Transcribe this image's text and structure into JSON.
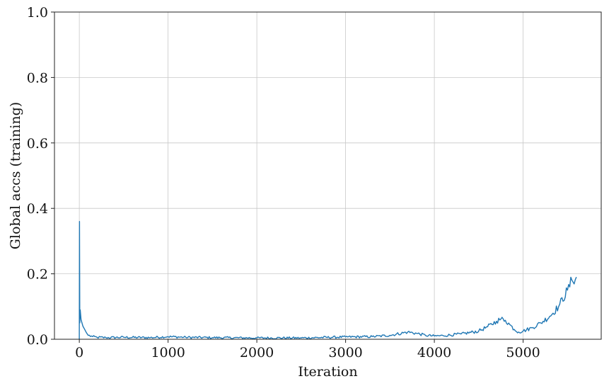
{
  "chart_data": {
    "type": "line",
    "title": "",
    "xlabel": "Iteration",
    "ylabel": "Global accs (training)",
    "xlim": [
      -280,
      5880
    ],
    "ylim": [
      0.0,
      1.0
    ],
    "xticks": [
      0,
      1000,
      2000,
      3000,
      4000,
      5000
    ],
    "xtick_labels": [
      "0",
      "1000",
      "2000",
      "3000",
      "4000",
      "5000"
    ],
    "yticks": [
      0.0,
      0.2,
      0.4,
      0.6,
      0.8,
      1.0
    ],
    "ytick_labels": [
      "0.0",
      "0.2",
      "0.4",
      "0.6",
      "0.8",
      "1.0"
    ],
    "grid": true,
    "legend": "none",
    "series": [
      {
        "color": "#1f77b4",
        "x": [
          0,
          2,
          5,
          10,
          20,
          40,
          60,
          80,
          100,
          150,
          200,
          300,
          500,
          800,
          1000,
          1200,
          1500,
          2000,
          2500,
          3000,
          3300,
          3500,
          3700,
          3800,
          3900,
          4000,
          4100,
          4300,
          4500,
          4600,
          4700,
          4750,
          4800,
          4850,
          4900,
          4950,
          5000,
          5100,
          5200,
          5300,
          5400,
          5500,
          5550,
          5600
        ],
        "y": [
          0.0,
          0.36,
          0.05,
          0.09,
          0.06,
          0.04,
          0.03,
          0.02,
          0.012,
          0.008,
          0.006,
          0.005,
          0.006,
          0.005,
          0.008,
          0.006,
          0.005,
          0.004,
          0.004,
          0.007,
          0.008,
          0.012,
          0.022,
          0.018,
          0.012,
          0.01,
          0.011,
          0.016,
          0.025,
          0.038,
          0.055,
          0.062,
          0.058,
          0.045,
          0.03,
          0.022,
          0.025,
          0.035,
          0.05,
          0.07,
          0.1,
          0.15,
          0.18,
          0.19
        ]
      }
    ]
  }
}
